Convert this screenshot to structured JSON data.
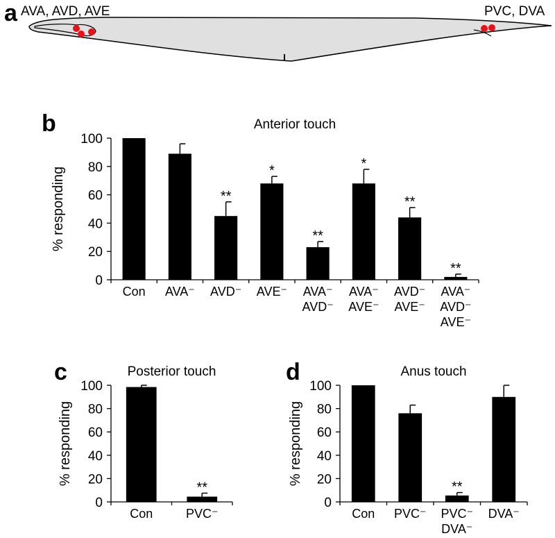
{
  "panel_a": {
    "label": "a",
    "anterior_neurons": "AVA, AVD, AVE",
    "posterior_neurons": "PVC, DVA"
  },
  "chart_data": [
    {
      "type": "bar",
      "panel": "b",
      "title": "Anterior touch",
      "y_label": "% responding",
      "color": "#000000",
      "categories": [
        [
          "Con"
        ],
        [
          "AVA⁻"
        ],
        [
          "AVD⁻"
        ],
        [
          "AVE⁻"
        ],
        [
          "AVA⁻",
          "AVD⁻"
        ],
        [
          "AVA⁻",
          "AVE⁻"
        ],
        [
          "AVD⁻",
          "AVE⁻"
        ],
        [
          "AVA⁻",
          "AVD⁻",
          "AVE⁻"
        ]
      ],
      "values": [
        100,
        89,
        45,
        68,
        23,
        68,
        44,
        2
      ],
      "errors": [
        null,
        7,
        10,
        5,
        4,
        10,
        7,
        2
      ],
      "significance": [
        null,
        null,
        "**",
        "*",
        "**",
        "*",
        "**",
        "**"
      ],
      "ylim": [
        0,
        100
      ],
      "yticks": [
        0,
        20,
        40,
        60,
        80,
        100
      ]
    },
    {
      "type": "bar",
      "panel": "c",
      "title": "Posterior touch",
      "y_label": "% responding",
      "color": "#000000",
      "categories": [
        [
          "Con"
        ],
        [
          "PVC⁻"
        ]
      ],
      "values": [
        98.5,
        4.5
      ],
      "errors": [
        1.5,
        3
      ],
      "significance": [
        null,
        "**"
      ],
      "ylim": [
        0,
        100
      ],
      "yticks": [
        0,
        20,
        40,
        60,
        80,
        100
      ]
    },
    {
      "type": "bar",
      "panel": "d",
      "title": "Anus touch",
      "y_label": "% responding",
      "color": "#000000",
      "categories": [
        [
          "Con"
        ],
        [
          "PVC⁻"
        ],
        [
          "PVC⁻",
          "DVA⁻"
        ],
        [
          "DVA⁻"
        ]
      ],
      "values": [
        100,
        76,
        5.5,
        90
      ],
      "errors": [
        null,
        7,
        2.5,
        10
      ],
      "significance": [
        null,
        null,
        "**",
        null
      ],
      "ylim": [
        0,
        100
      ],
      "yticks": [
        0,
        20,
        40,
        60,
        80,
        100
      ]
    }
  ]
}
